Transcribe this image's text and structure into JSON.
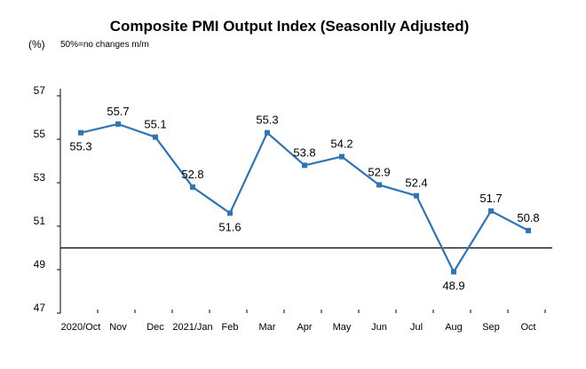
{
  "chart_data": {
    "type": "line",
    "title": "Composite PMI Output Index (Seasonlly Adjusted)",
    "ylabel": "(%)",
    "note": "50%=no changes  m/m",
    "categories": [
      "2020/Oct",
      "Nov",
      "Dec",
      "2021/Jan",
      "Feb",
      "Mar",
      "Apr",
      "May",
      "Jun",
      "Jul",
      "Aug",
      "Sep",
      "Oct"
    ],
    "values": [
      55.3,
      55.7,
      55.1,
      52.8,
      51.6,
      55.3,
      53.8,
      54.2,
      52.9,
      52.4,
      48.9,
      51.7,
      50.8
    ],
    "data_labels": [
      "55.3",
      "55.7",
      "55.1",
      "52.8",
      "51.6",
      "55.3",
      "53.8",
      "54.2",
      "52.9",
      "52.4",
      "48.9",
      "51.7",
      "50.8"
    ],
    "label_position": [
      "below",
      "above",
      "above",
      "above",
      "below",
      "above",
      "above",
      "above",
      "above",
      "above",
      "below",
      "above",
      "above"
    ],
    "ylim": [
      47,
      57
    ],
    "yticks": [
      47,
      49,
      51,
      53,
      55,
      57
    ],
    "reference_line": 50,
    "grid": false,
    "legend": "none",
    "colors": {
      "series": "#2E75B6",
      "axis": "#000000"
    }
  }
}
